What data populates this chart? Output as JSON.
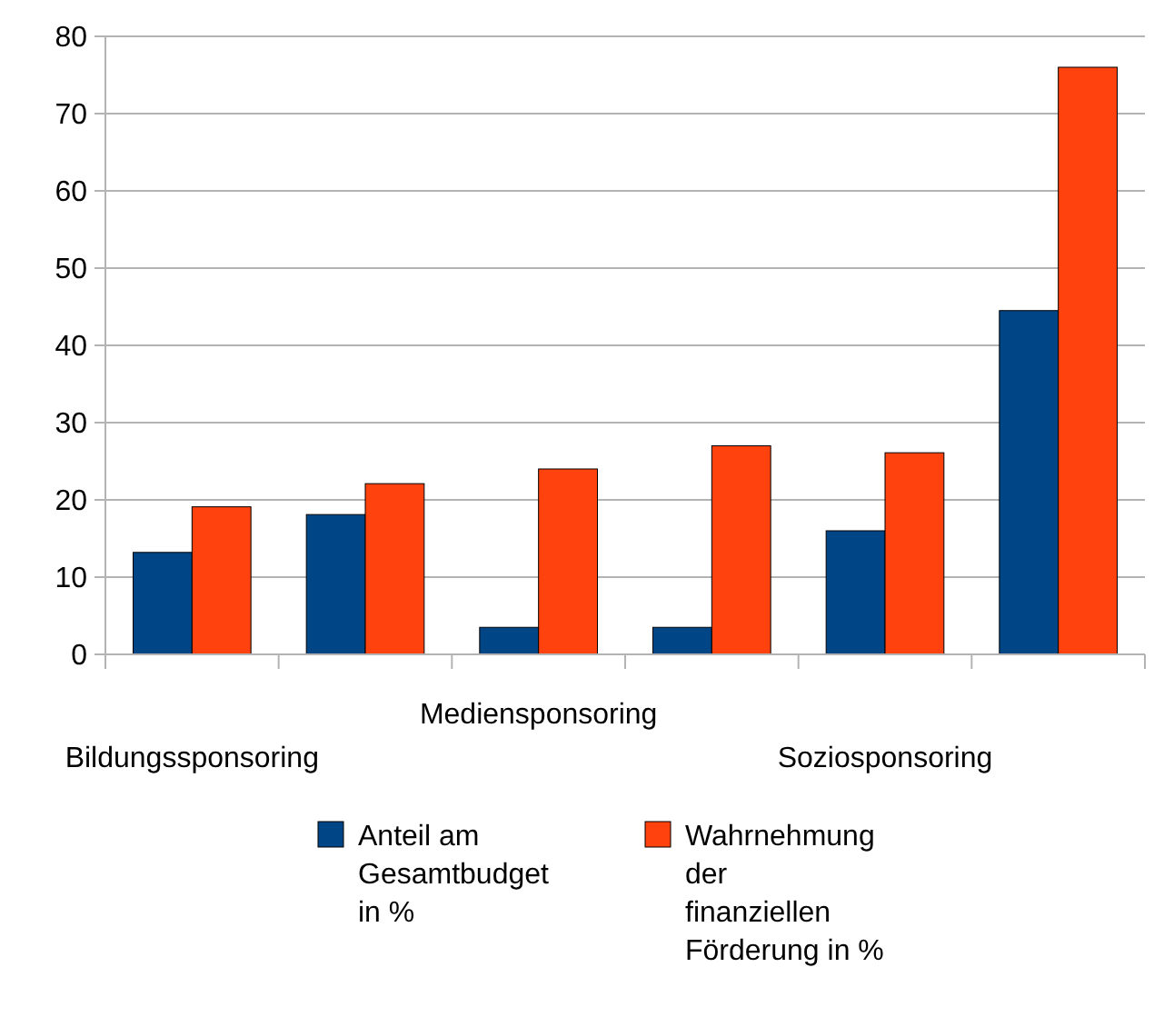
{
  "chart_data": {
    "type": "bar",
    "categories": [
      "Bildungssponsoring",
      null,
      "Mediensponsoring",
      null,
      "Soziosponsoring",
      null
    ],
    "series": [
      {
        "name": "Anteil am Gesamtbudget in %",
        "color": "#004586",
        "values": [
          13.2,
          18.1,
          3.5,
          3.5,
          16,
          44.5
        ]
      },
      {
        "name": "Wahrnehmung der finanziellen Förderung in %",
        "color": "#ff420e",
        "values": [
          19.1,
          22.1,
          24,
          27,
          26.1,
          76
        ]
      }
    ],
    "ylim": [
      0,
      80
    ],
    "yticks": [
      0,
      10,
      20,
      30,
      40,
      50,
      60,
      70,
      80
    ],
    "grid": "y",
    "legend": "bottom"
  }
}
